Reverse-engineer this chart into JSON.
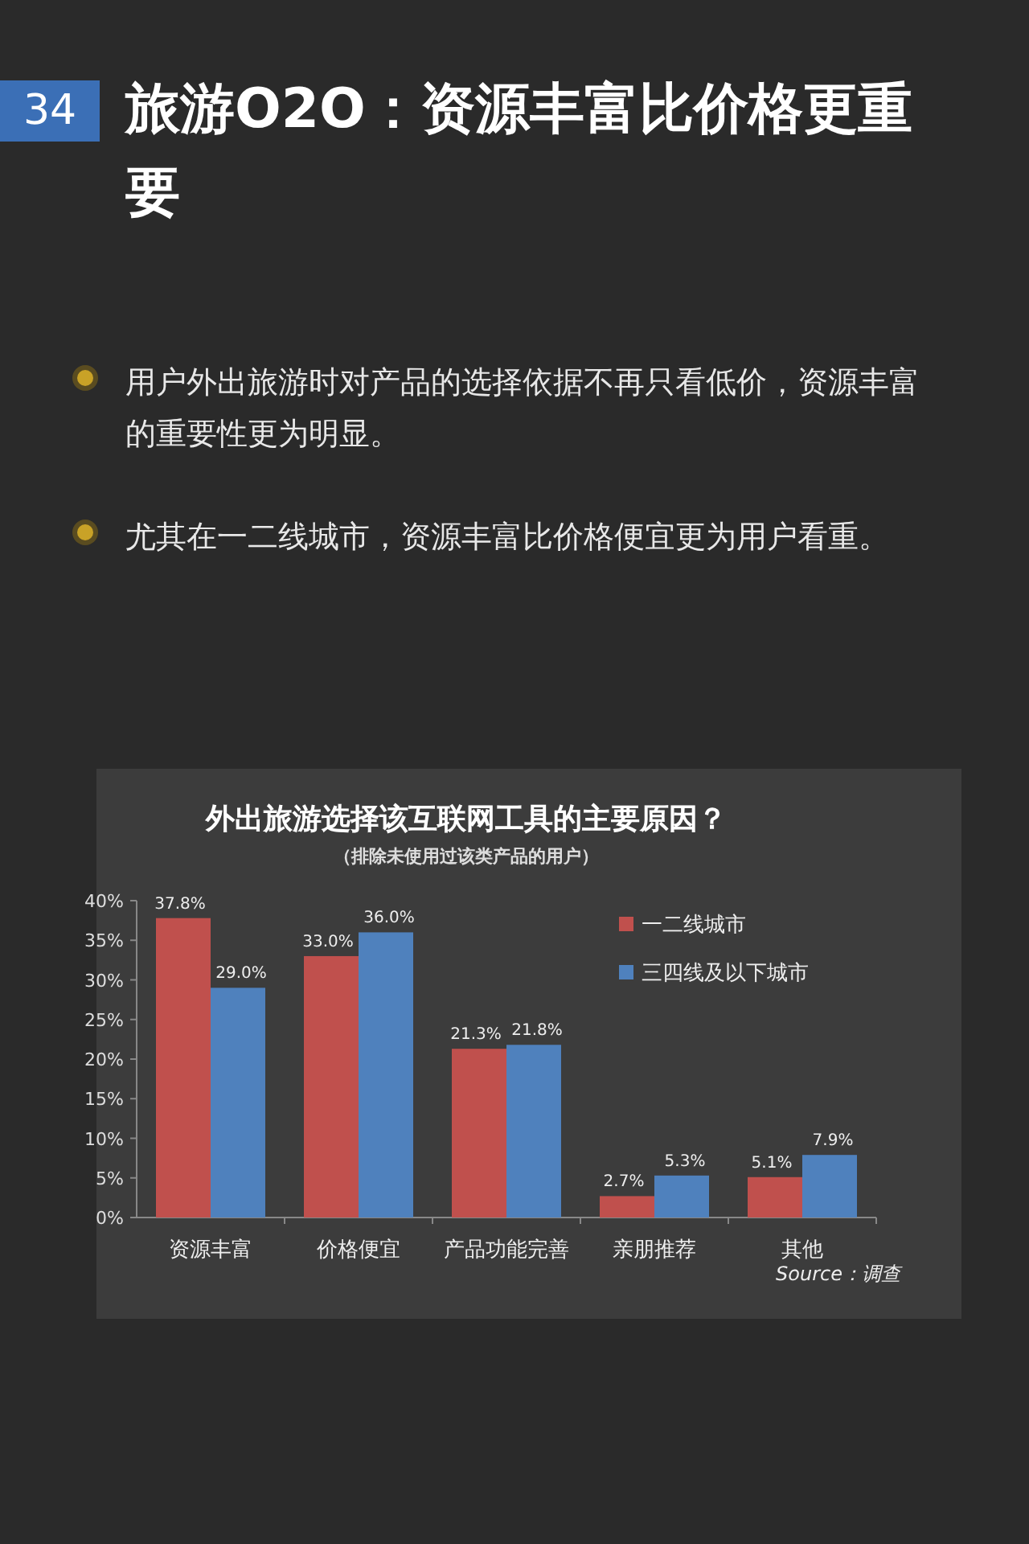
{
  "chart_data": {
    "type": "bar",
    "title": "旅游O2O：资源丰富比价格更重要",
    "subtitle": "外出旅游选择该互联网工具的主要原因？",
    "annotations": [
      "34",
      "用户外出旅游时对产品的选择依据不再只看低价，资源丰富的重要性更为明显。",
      "尤其在一二线城市，资源丰富比价格便宜更为用户看重。",
      "（排除未使用过该类产品的用户）",
      "Source：调查"
    ],
    "categories": [
      "资源丰富",
      "价格便宜",
      "产品功能完善",
      "亲朋推荐",
      "其他"
    ],
    "series": [
      {
        "name": "一二线城市",
        "color": "#c0504d",
        "values": [
          37.8,
          33.0,
          21.3,
          2.7,
          5.1
        ],
        "value_labels": [
          "37.8%",
          "33.0%",
          "21.3%",
          "2.7%",
          "5.1%"
        ]
      },
      {
        "name": "三四线及以下城市",
        "color": "#4f81bd",
        "values": [
          29.0,
          36.0,
          21.8,
          5.3,
          7.9
        ],
        "value_labels": [
          "29.0%",
          "36.0%",
          "21.8%",
          "5.3%",
          "7.9%"
        ]
      }
    ],
    "ylim": [
      0,
      40
    ],
    "yticks": [
      {
        "value": 0,
        "label": "0%"
      },
      {
        "value": 5,
        "label": "5%"
      },
      {
        "value": 10,
        "label": "10%"
      },
      {
        "value": 15,
        "label": "15%"
      },
      {
        "value": 20,
        "label": "20%"
      },
      {
        "value": 25,
        "label": "25%"
      },
      {
        "value": 30,
        "label": "30%"
      },
      {
        "value": 35,
        "label": "35%"
      },
      {
        "value": 40,
        "label": "40%"
      }
    ],
    "legend": "top right"
  }
}
